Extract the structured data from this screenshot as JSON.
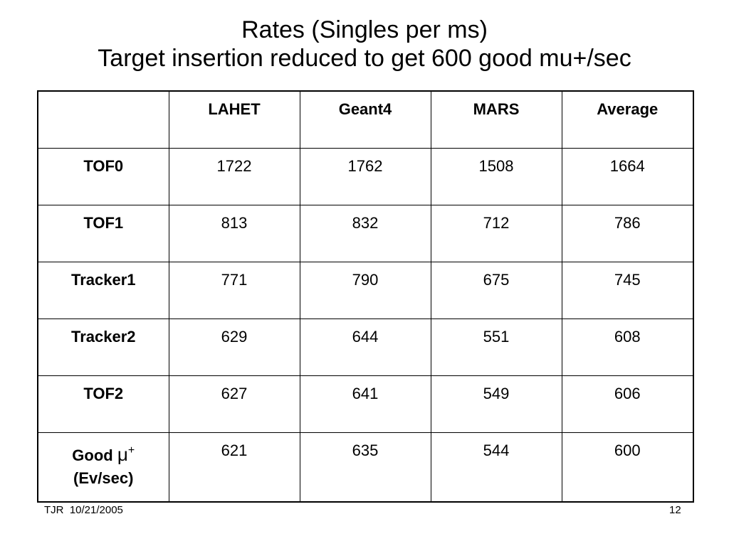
{
  "title": {
    "line1": "Rates (Singles per ms)",
    "line2": "Target insertion reduced to get 600 good mu+/sec"
  },
  "table": {
    "columns": [
      "",
      "LAHET",
      "Geant4",
      "MARS",
      "Average"
    ],
    "rows": [
      {
        "label": "TOF0",
        "values": [
          "1722",
          "1762",
          "1508",
          "1664"
        ]
      },
      {
        "label": "TOF1",
        "values": [
          "813",
          "832",
          "712",
          "786"
        ]
      },
      {
        "label": "Tracker1",
        "values": [
          "771",
          "790",
          "675",
          "745"
        ]
      },
      {
        "label": "Tracker2",
        "values": [
          "629",
          "644",
          "551",
          "608"
        ]
      },
      {
        "label": "TOF2",
        "values": [
          "627",
          "641",
          "549",
          "606"
        ]
      },
      {
        "label": "Good",
        "symbol": "μ",
        "superscript": "+",
        "sublabel": "(Ev/sec)",
        "values": [
          "621",
          "635",
          "544",
          "600"
        ]
      }
    ]
  },
  "footer": {
    "left": "TJR  10/21/2005",
    "page": "12"
  }
}
